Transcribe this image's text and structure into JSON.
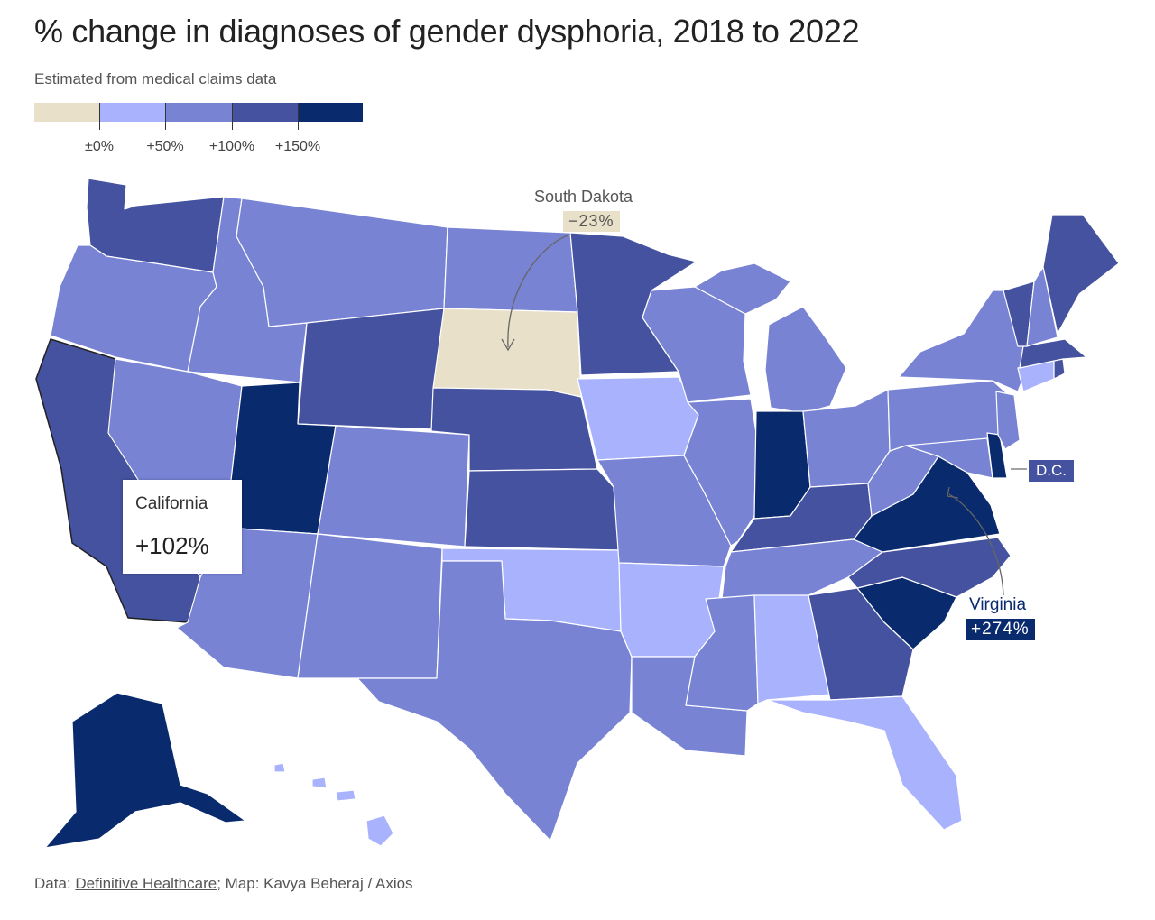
{
  "title": "% change in diagnoses of gender dysphoria, 2018 to 2022",
  "subtitle": "Estimated from medical claims data",
  "legend": {
    "colors": [
      "#e8e0c9",
      "#a9b2fd",
      "#7883d4",
      "#44529f",
      "#0a2a6e"
    ],
    "labels": [
      "±0%",
      "+50%",
      "+100%",
      "+150%"
    ]
  },
  "bins": {
    "neg": "#e8e0c9",
    "b0": "#a9b2fd",
    "b1": "#7883d4",
    "b2": "#44529f",
    "b3": "#0a2a6e"
  },
  "annotations": {
    "south_dakota": {
      "name": "South Dakota",
      "value": "−23%"
    },
    "california": {
      "name": "California",
      "value": "+102%"
    },
    "virginia": {
      "name": "Virginia",
      "value": "+274%"
    },
    "dc": {
      "name": "D.C."
    }
  },
  "footer": {
    "data_prefix": "Data: ",
    "source": "Definitive Healthcare",
    "rest": "; Map: Kavya Beheraj / Axios"
  }
}
